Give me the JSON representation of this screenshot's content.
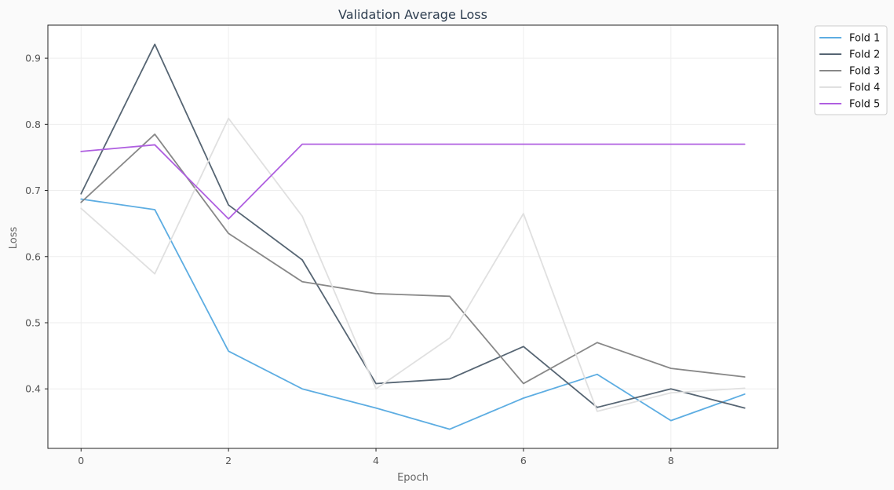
{
  "chart_data": {
    "type": "line",
    "title": "Validation Average Loss",
    "xlabel": "Epoch",
    "ylabel": "Loss",
    "x": [
      0,
      1,
      2,
      3,
      4,
      5,
      6,
      7,
      8,
      9
    ],
    "xlim": [
      -0.45,
      9.45
    ],
    "ylim": [
      0.31,
      0.95
    ],
    "xticks": [
      0,
      2,
      4,
      6,
      8
    ],
    "xtick_labels": [
      "0",
      "2",
      "4",
      "6",
      "8"
    ],
    "yticks": [
      0.4,
      0.5,
      0.6,
      0.7,
      0.8,
      0.9
    ],
    "ytick_labels": [
      "0.4",
      "0.5",
      "0.6",
      "0.7",
      "0.8",
      "0.9"
    ],
    "grid": true,
    "legend_position": "outside-top-right",
    "series": [
      {
        "name": "Fold 1",
        "color": "#5dade2",
        "values": [
          0.687,
          0.671,
          0.457,
          0.4,
          0.371,
          0.339,
          0.386,
          0.422,
          0.352,
          0.392
        ]
      },
      {
        "name": "Fold 2",
        "color": "#566573",
        "values": [
          0.695,
          0.921,
          0.678,
          0.595,
          0.408,
          0.415,
          0.464,
          0.372,
          0.4,
          0.371
        ]
      },
      {
        "name": "Fold 3",
        "color": "#888888",
        "values": [
          0.682,
          0.785,
          0.635,
          0.562,
          0.544,
          0.54,
          0.408,
          0.47,
          0.431,
          0.418
        ]
      },
      {
        "name": "Fold 4",
        "color": "#e0e0e0",
        "values": [
          0.673,
          0.574,
          0.809,
          0.661,
          0.4,
          0.477,
          0.665,
          0.366,
          0.394,
          0.401
        ]
      },
      {
        "name": "Fold 5",
        "color": "#af5fe0",
        "values": [
          0.759,
          0.769,
          0.657,
          0.77,
          0.77,
          0.77,
          0.77,
          0.77,
          0.77,
          0.77
        ]
      }
    ]
  }
}
